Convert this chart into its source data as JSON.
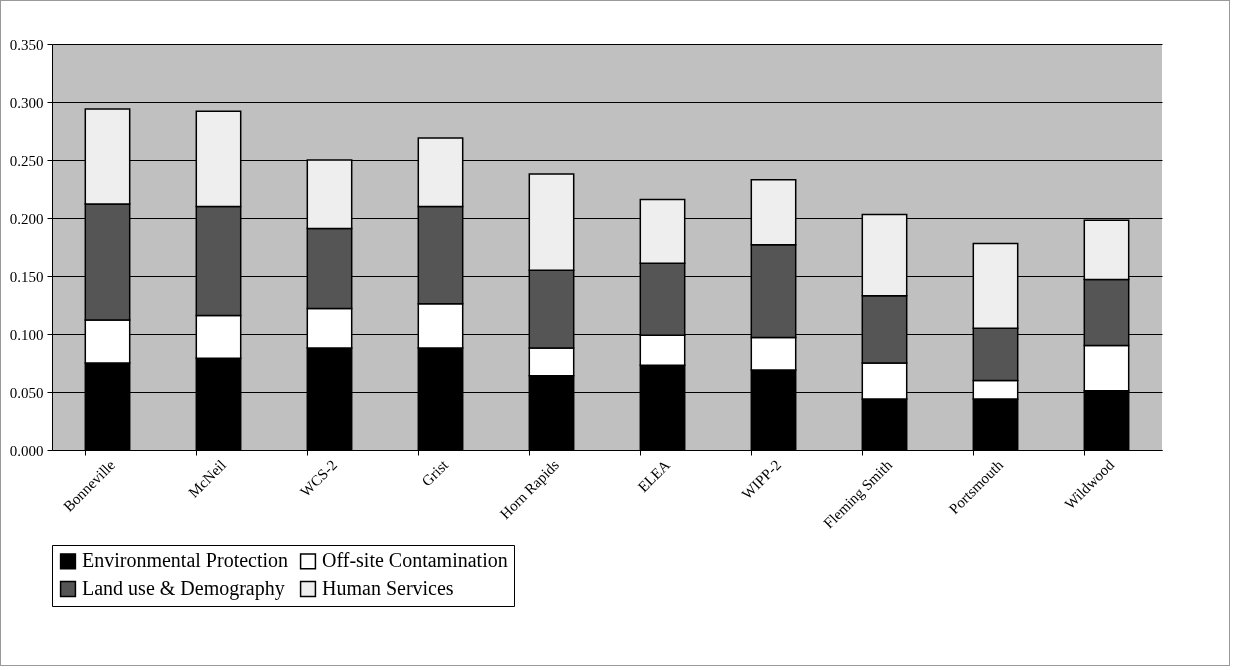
{
  "chart_data": {
    "type": "bar",
    "stacked": true,
    "categories": [
      "Bonneville",
      "McNeil",
      "WCS-2",
      "Grist",
      "Horn Rapids",
      "ELEA",
      "WIPP-2",
      "Fleming Smith",
      "Portsmouth",
      "Wildwood"
    ],
    "series": [
      {
        "name": "Environmental Protection",
        "color": "#000000",
        "values": [
          0.075,
          0.079,
          0.088,
          0.088,
          0.064,
          0.073,
          0.069,
          0.044,
          0.044,
          0.051
        ]
      },
      {
        "name": "Off-site Contamination",
        "color": "#ffffff",
        "values": [
          0.037,
          0.037,
          0.034,
          0.038,
          0.024,
          0.026,
          0.028,
          0.031,
          0.016,
          0.039
        ]
      },
      {
        "name": "Land use & Demography",
        "color": "#555555",
        "values": [
          0.1,
          0.094,
          0.069,
          0.084,
          0.067,
          0.062,
          0.08,
          0.058,
          0.045,
          0.057
        ]
      },
      {
        "name": "Human Services",
        "color": "#eeeeee",
        "values": [
          0.082,
          0.082,
          0.059,
          0.059,
          0.083,
          0.055,
          0.056,
          0.07,
          0.073,
          0.051
        ]
      }
    ],
    "ylim": [
      0,
      0.35
    ],
    "yticks": [
      {
        "value": 0,
        "label": "0.000"
      },
      {
        "value": 0.05,
        "label": "0.050"
      },
      {
        "value": 0.1,
        "label": "0.100"
      },
      {
        "value": 0.15,
        "label": "0.150"
      },
      {
        "value": 0.2,
        "label": "0.200"
      },
      {
        "value": 0.25,
        "label": "0.250"
      },
      {
        "value": 0.3,
        "label": "0.300"
      },
      {
        "value": 0.35,
        "label": "0.350"
      }
    ],
    "grid": "y",
    "legend": "bottom"
  }
}
